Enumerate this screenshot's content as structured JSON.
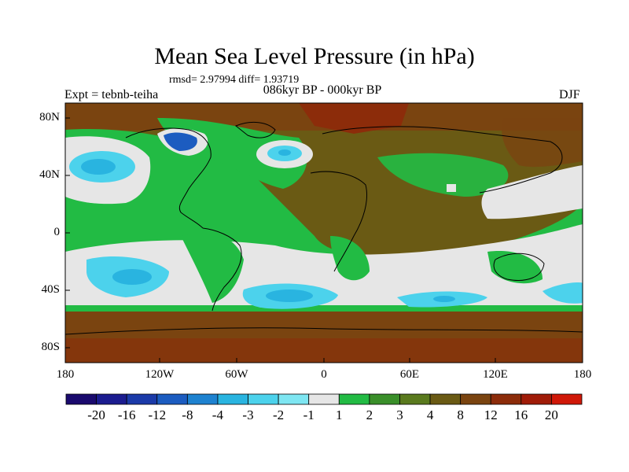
{
  "title": "Mean Sea Level Pressure (in hPa)",
  "stats_text": "rmsd= 2.97994 diff= 1.93719",
  "period": "086kyr BP - 000kyr BP",
  "expt": "Expt = tebnb-teiha",
  "season": "DJF",
  "lat_labels": [
    "80N",
    "40N",
    "0",
    "40S",
    "80S"
  ],
  "lon_labels": [
    "180",
    "120W",
    "60W",
    "0",
    "60E",
    "120E",
    "180"
  ],
  "colorbar": {
    "colors": [
      "#1a0a6e",
      "#1b1c8f",
      "#1b3aa8",
      "#1c5cc0",
      "#1e82d0",
      "#29b4e0",
      "#4cd2ec",
      "#7ee6f2",
      "#e6e6e6",
      "#22bb44",
      "#3a8f2a",
      "#5a7a1e",
      "#6a5a14",
      "#7a4410",
      "#8c2c0a",
      "#a01c08",
      "#d01808"
    ],
    "labels": [
      "-20",
      "-16",
      "-12",
      "-8",
      "-4",
      "-3",
      "-2",
      "-1",
      "1",
      "2",
      "3",
      "4",
      "8",
      "12",
      "16",
      "20"
    ]
  },
  "legend_colors": {
    "ocean_base": "#e6e6e6",
    "positive_2": "#22bb44",
    "positive_4": "#6a5a14",
    "positive_8": "#7a4410",
    "positive_12": "#8c2c0a",
    "negative_1": "#7ee6f2",
    "negative_2": "#4cd2ec",
    "negative_3": "#29b4e0",
    "negative_8": "#1c5cc0"
  }
}
